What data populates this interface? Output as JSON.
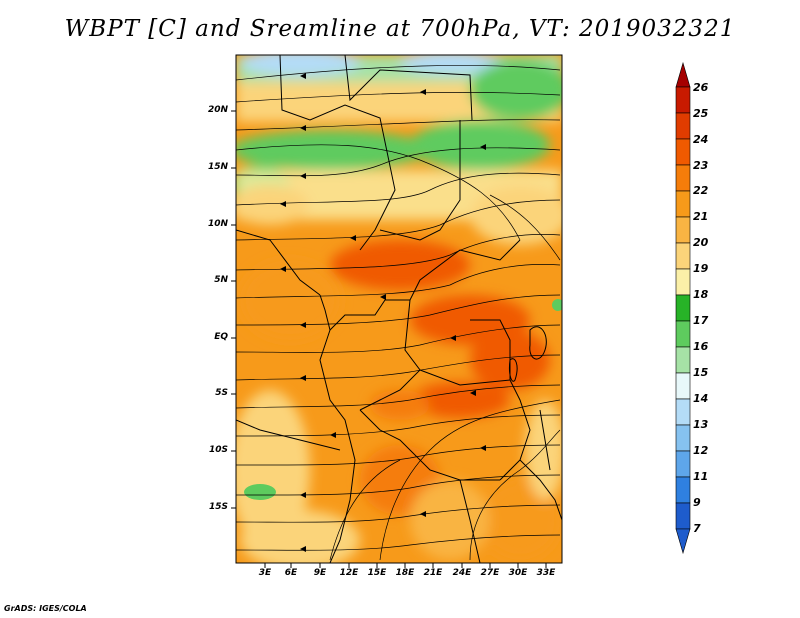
{
  "title": "WBPT [C] and Sreamline at 700hPa, VT: 2019032321",
  "credit": "GrADS: IGES/COLA",
  "map": {
    "lat_labels": [
      "20N",
      "15N",
      "10N",
      "5N",
      "EQ",
      "5S",
      "10S",
      "15S"
    ],
    "lon_labels": [
      "3E",
      "6E",
      "9E",
      "12E",
      "15E",
      "18E",
      "21E",
      "24E",
      "27E",
      "30E",
      "33E"
    ]
  },
  "colorbar": {
    "levels": [
      "26",
      "25",
      "24",
      "23",
      "22",
      "21",
      "20",
      "19",
      "18",
      "17",
      "16",
      "15",
      "14",
      "13",
      "12",
      "11",
      "9",
      "7"
    ],
    "colors": [
      "#a50000",
      "#c81a00",
      "#e03c00",
      "#f05a00",
      "#f57d0a",
      "#f79a1a",
      "#f9b443",
      "#fbd47a",
      "#fbf0a8",
      "#27b327",
      "#5ecb5e",
      "#a6e2a6",
      "#e8f8fa",
      "#b4dcf7",
      "#86c2f0",
      "#5ea6ea",
      "#2f80e0",
      "#1e5ccc"
    ],
    "top_color": "#a50000",
    "bottom_color": "#1e5ccc"
  }
}
